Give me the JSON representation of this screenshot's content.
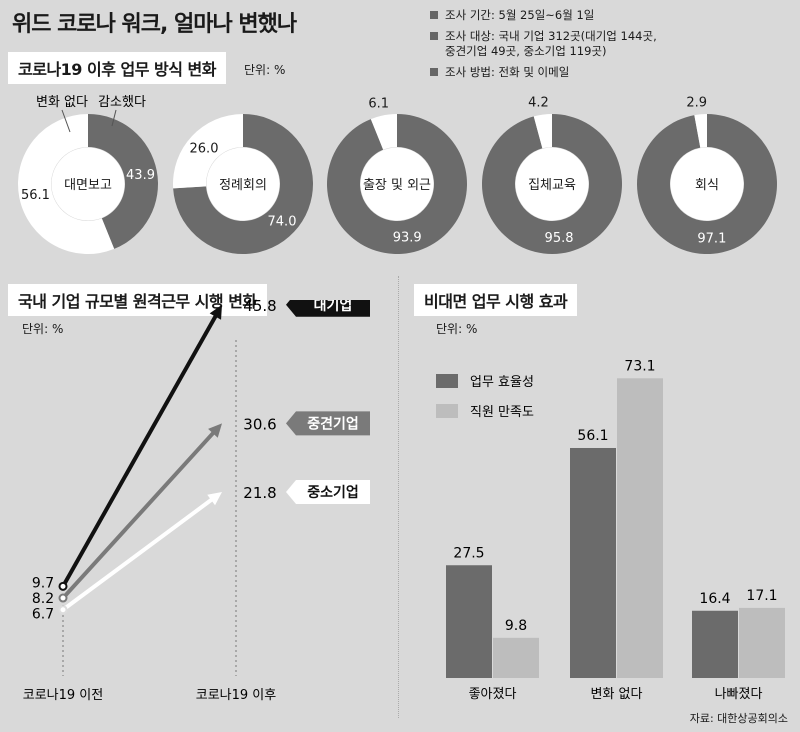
{
  "header": {
    "title": "위드 코로나 워크, 얼마나 변했나",
    "survey": [
      {
        "text": "조사 기간: 5월 25일~6월 1일"
      },
      {
        "text": "조사 대상: 국내 기업 312곳(대기업 144곳,",
        "text2": "중견기업 49곳, 중소기업 119곳)"
      },
      {
        "text": "조사 방법: 전화 및 이메일"
      }
    ]
  },
  "colors": {
    "dark": "#6b6b6b",
    "light": "#ffffff",
    "bar_light": "#bdbdbd",
    "black": "#111111"
  },
  "section1": {
    "title": "코로나19 이후 업무 방식 변화",
    "unit": "단위: %"
  },
  "section2": {
    "title": "국내 기업 규모별 원격근무 시행 변화",
    "unit": "단위: %"
  },
  "section3": {
    "title": "비대면 업무 시행 효과",
    "unit": "단위: %"
  },
  "source": "자료: 대한상공회의소",
  "chart_data": [
    {
      "type": "pie",
      "title": "코로나19 이후 업무 방식 변화",
      "unit": "%",
      "legend": [
        "감소했다",
        "변화 없다"
      ],
      "items": [
        {
          "label": "대면보고",
          "decreased": 43.9,
          "no_change": 56.1,
          "show_no_change": "56.1",
          "show_decreased": "43.9"
        },
        {
          "label": "정례회의",
          "decreased": 74.0,
          "no_change": 26.0,
          "show_no_change": "26.0",
          "show_decreased": "74.0"
        },
        {
          "label": "출장 및 외근",
          "decreased": 93.9,
          "no_change": 6.1,
          "show_no_change": "6.1",
          "show_decreased": "93.9"
        },
        {
          "label": "집체교육",
          "decreased": 95.8,
          "no_change": 4.2,
          "show_no_change": "4.2",
          "show_decreased": "95.8"
        },
        {
          "label": "회식",
          "decreased": 97.1,
          "no_change": 2.9,
          "show_no_change": "2.9",
          "show_decreased": "97.1"
        }
      ]
    },
    {
      "type": "line",
      "title": "국내 기업 규모별 원격근무 시행 변화",
      "unit": "%",
      "x": [
        "코로나19 이전",
        "코로나19 이후"
      ],
      "series": [
        {
          "name": "대기업",
          "values": [
            9.7,
            45.8
          ],
          "labels": [
            "9.7",
            "45.8"
          ]
        },
        {
          "name": "중견기업",
          "values": [
            8.2,
            30.6
          ],
          "labels": [
            "8.2",
            "30.6"
          ]
        },
        {
          "name": "중소기업",
          "values": [
            6.7,
            21.8
          ],
          "labels": [
            "6.7",
            "21.8"
          ]
        }
      ]
    },
    {
      "type": "bar",
      "title": "비대면 업무 시행 효과",
      "unit": "%",
      "categories": [
        "좋아졌다",
        "변화 없다",
        "나빠졌다"
      ],
      "series": [
        {
          "name": "업무 효율성",
          "values": [
            27.5,
            56.1,
            16.4
          ],
          "labels": [
            "27.5",
            "56.1",
            "16.4"
          ]
        },
        {
          "name": "직원 만족도",
          "values": [
            9.8,
            73.1,
            17.1
          ],
          "labels": [
            "9.8",
            "73.1",
            "17.1"
          ]
        }
      ]
    }
  ]
}
